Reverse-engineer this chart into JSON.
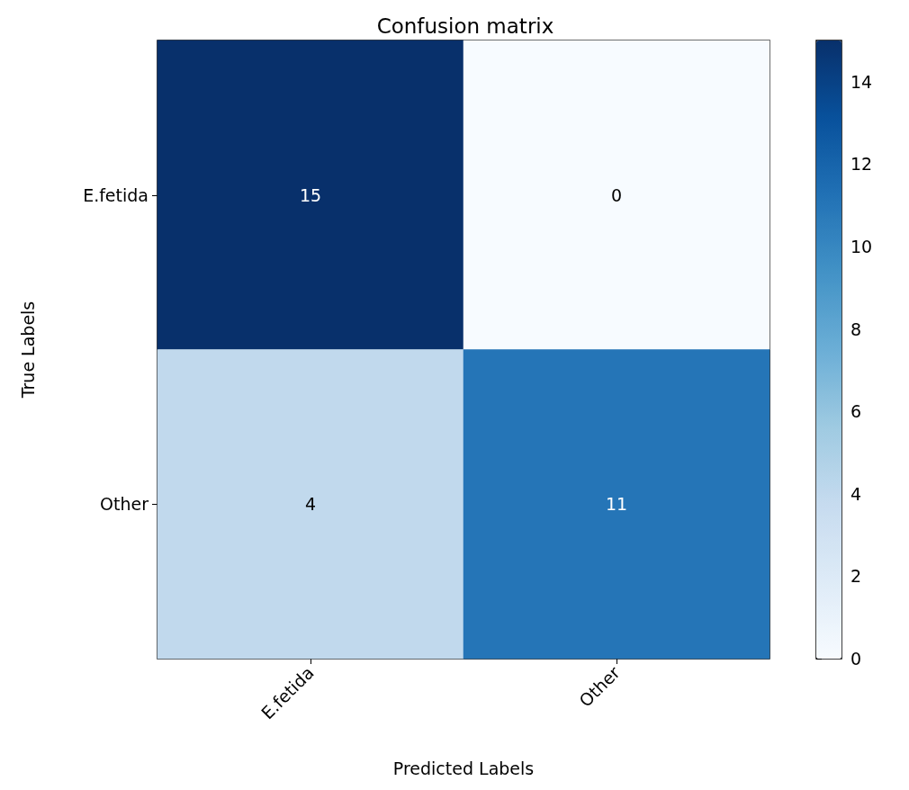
{
  "chart_data": {
    "type": "heatmap",
    "title": "Confusion matrix",
    "xlabel": "Predicted Labels",
    "ylabel": "True Labels",
    "categories": [
      "E.fetida",
      "Other"
    ],
    "y_categories": [
      "E.fetida",
      "Other"
    ],
    "cells": [
      [
        15,
        0
      ],
      [
        4,
        11
      ]
    ],
    "clim": [
      0,
      15
    ],
    "cticks": [
      0,
      2,
      4,
      6,
      8,
      10,
      12,
      14
    ],
    "data_labels": true
  }
}
